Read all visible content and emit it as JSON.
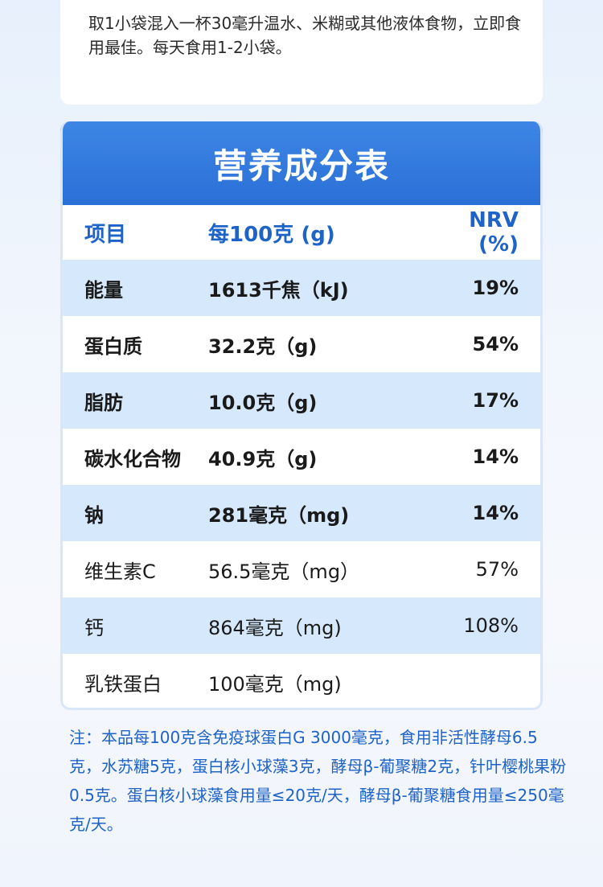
{
  "usage": "取1小袋混入一杯30毫升温水、米糊或其他液体食物，立即食用最佳。每天食用1-2小袋。",
  "table": {
    "title": "营养成分表",
    "headers": [
      "项目",
      "每100克 (g)",
      "NRV (%)"
    ],
    "rows": [
      {
        "item": "能量",
        "amount": "1613千焦（kJ)",
        "nrv": "19%"
      },
      {
        "item": "蛋白质",
        "amount": "32.2克（g)",
        "nrv": "54%"
      },
      {
        "item": "脂肪",
        "amount": "10.0克（g)",
        "nrv": "17%"
      },
      {
        "item": "碳水化合物",
        "amount": "40.9克（g)",
        "nrv": "14%"
      },
      {
        "item": "钠",
        "amount": "281毫克（mg)",
        "nrv": "14%"
      },
      {
        "item": "维生素C",
        "amount": "56.5毫克（mg）",
        "nrv": "57%"
      },
      {
        "item": "钙",
        "amount": "864毫克（mg)",
        "nrv": "108%"
      },
      {
        "item": "乳铁蛋白",
        "amount": "100毫克（mg)",
        "nrv": ""
      }
    ]
  },
  "note": "注：本品每100克含免疫球蛋白G 3000毫克，食用非活性酵母6.5克，水苏糖5克，蛋白核小球藻3克，酵母β-葡聚糖2克，针叶樱桃果粉0.5克。蛋白核小球藻食用量≤20克/天，酵母β-葡聚糖食用量≤250毫克/天。",
  "colors": {
    "header_blue": "#2a6fd6",
    "text_blue": "#1e63c8",
    "row_shade": "#d6e8fb"
  }
}
